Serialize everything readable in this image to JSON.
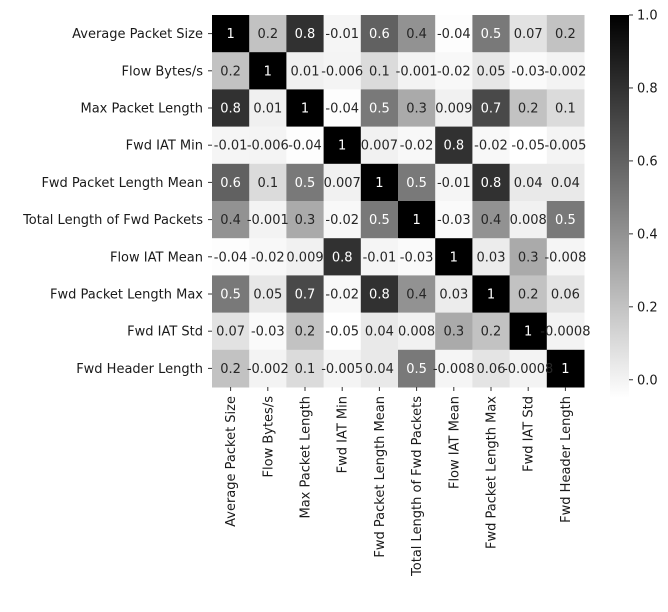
{
  "chart_data": {
    "type": "heatmap",
    "title": "",
    "xlabel": "",
    "ylabel": "",
    "labels": [
      "Average Packet Size",
      "Flow Bytes/s",
      "Max Packet Length",
      "Fwd IAT Min",
      "Fwd Packet Length Mean",
      "Total Length of Fwd Packets",
      "Flow IAT Mean",
      "Fwd Packet Length Max",
      "Fwd IAT Std",
      "Fwd Header Length"
    ],
    "values": [
      [
        1,
        0.2,
        0.8,
        -0.01,
        0.6,
        0.4,
        -0.04,
        0.5,
        0.07,
        0.2
      ],
      [
        0.2,
        1,
        0.01,
        -0.006,
        0.1,
        -0.001,
        -0.02,
        0.05,
        -0.03,
        -0.002
      ],
      [
        0.8,
        0.01,
        1,
        -0.04,
        0.5,
        0.3,
        0.009,
        0.7,
        0.2,
        0.1
      ],
      [
        -0.01,
        -0.006,
        -0.04,
        1,
        0.007,
        -0.02,
        0.8,
        -0.02,
        -0.05,
        -0.005
      ],
      [
        0.6,
        0.1,
        0.5,
        0.007,
        1,
        0.5,
        -0.01,
        0.8,
        0.04,
        0.04
      ],
      [
        0.4,
        -0.001,
        0.3,
        -0.02,
        0.5,
        1,
        -0.03,
        0.4,
        0.008,
        0.5
      ],
      [
        -0.04,
        -0.02,
        0.009,
        0.8,
        -0.01,
        -0.03,
        1,
        0.03,
        0.3,
        -0.008
      ],
      [
        0.5,
        0.05,
        0.7,
        -0.02,
        0.8,
        0.4,
        0.03,
        1,
        0.2,
        0.06
      ],
      [
        0.07,
        -0.03,
        0.2,
        -0.05,
        0.04,
        0.008,
        0.3,
        0.2,
        1,
        -0.0008
      ],
      [
        0.2,
        -0.002,
        0.1,
        -0.005,
        0.04,
        0.5,
        -0.008,
        0.06,
        -0.0008,
        1
      ]
    ],
    "cell_text": [
      [
        "1",
        "0.2",
        "0.8",
        "-0.01",
        "0.6",
        "0.4",
        "-0.04",
        "0.5",
        "0.07",
        "0.2"
      ],
      [
        "0.2",
        "1",
        "0.01",
        "-0.006",
        "0.1",
        "-0.001",
        "-0.02",
        "0.05",
        "-0.03",
        "-0.002"
      ],
      [
        "0.8",
        "0.01",
        "1",
        "-0.04",
        "0.5",
        "0.3",
        "0.009",
        "0.7",
        "0.2",
        "0.1"
      ],
      [
        "-0.01",
        "-0.006",
        "-0.04",
        "1",
        "0.007",
        "-0.02",
        "0.8",
        "-0.02",
        "-0.05",
        "-0.005"
      ],
      [
        "0.6",
        "0.1",
        "0.5",
        "0.007",
        "1",
        "0.5",
        "-0.01",
        "0.8",
        "0.04",
        "0.04"
      ],
      [
        "0.4",
        "-0.001",
        "0.3",
        "-0.02",
        "0.5",
        "1",
        "-0.03",
        "0.4",
        "0.008",
        "0.5"
      ],
      [
        "-0.04",
        "-0.02",
        "0.009",
        "0.8",
        "-0.01",
        "-0.03",
        "1",
        "0.03",
        "0.3",
        "-0.008"
      ],
      [
        "0.5",
        "0.05",
        "0.7",
        "-0.02",
        "0.8",
        "0.4",
        "0.03",
        "1",
        "0.2",
        "0.06"
      ],
      [
        "0.07",
        "-0.03",
        "0.2",
        "-0.05",
        "0.04",
        "0.008",
        "0.3",
        "0.2",
        "1",
        "-0.0008"
      ],
      [
        "0.2",
        "-0.002",
        "0.1",
        "-0.005",
        "0.04",
        "0.5",
        "-0.008",
        "0.06",
        "-0.0008",
        "1"
      ]
    ],
    "colormap": "greys",
    "color_low": "#ffffff",
    "color_high": "#000000",
    "vmin": -0.05,
    "vmax": 1,
    "colorbar": {
      "ticks": [
        0.0,
        0.2,
        0.4,
        0.6,
        0.8,
        1.0
      ],
      "tick_labels": [
        "0.0",
        "0.2",
        "0.4",
        "0.6",
        "0.8",
        "1.0"
      ],
      "placement": "right"
    },
    "grid": false
  }
}
